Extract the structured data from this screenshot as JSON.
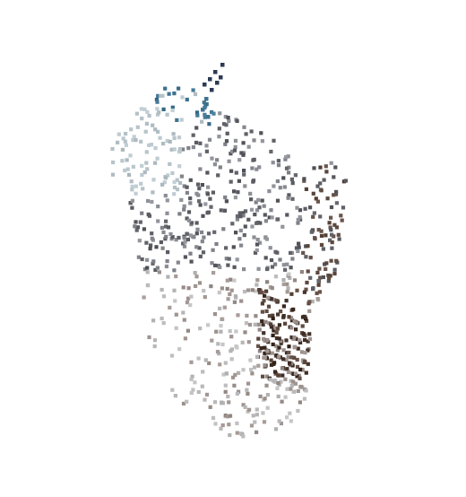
{
  "scene": {
    "background_color": "#ffffff",
    "point_colors": {
      "navy": "#2b3a55",
      "steel_blue": "#3f7390",
      "light_blue_gray": "#b6c3c9",
      "gray": "#8a8c93",
      "dark_gray": "#5b5c62",
      "brown": "#5e4a40",
      "dark_brown": "#3a2a22",
      "tan_gray": "#9c918d",
      "light_gray": "#bdbcbd"
    }
  }
}
